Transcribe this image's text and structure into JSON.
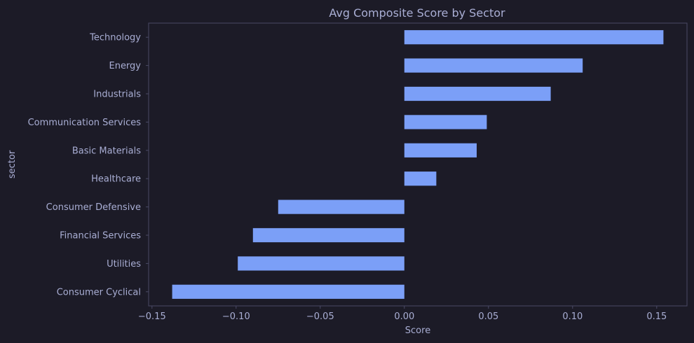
{
  "chart_data": {
    "type": "bar",
    "orientation": "horizontal",
    "title": "Avg Composite Score by Sector",
    "xlabel": "Score",
    "ylabel": "sector",
    "xlim": [
      -0.152,
      0.168
    ],
    "xticks": [
      -0.15,
      -0.1,
      -0.05,
      0.0,
      0.05,
      0.1,
      0.15
    ],
    "xtick_labels": [
      "−0.15",
      "−0.10",
      "−0.05",
      "0.00",
      "0.05",
      "0.10",
      "0.15"
    ],
    "categories": [
      "Technology",
      "Energy",
      "Industrials",
      "Communication Services",
      "Basic Materials",
      "Healthcare",
      "Consumer Defensive",
      "Financial Services",
      "Utilities",
      "Consumer Cyclical"
    ],
    "values": [
      0.154,
      0.106,
      0.087,
      0.049,
      0.043,
      0.019,
      -0.075,
      -0.09,
      -0.099,
      -0.138
    ],
    "grid": false,
    "legend": "none",
    "colors": {
      "bar": "#7b9ff7",
      "background": "#1c1b27",
      "axis": "#4a4a66",
      "text": "#a9aed4"
    }
  }
}
